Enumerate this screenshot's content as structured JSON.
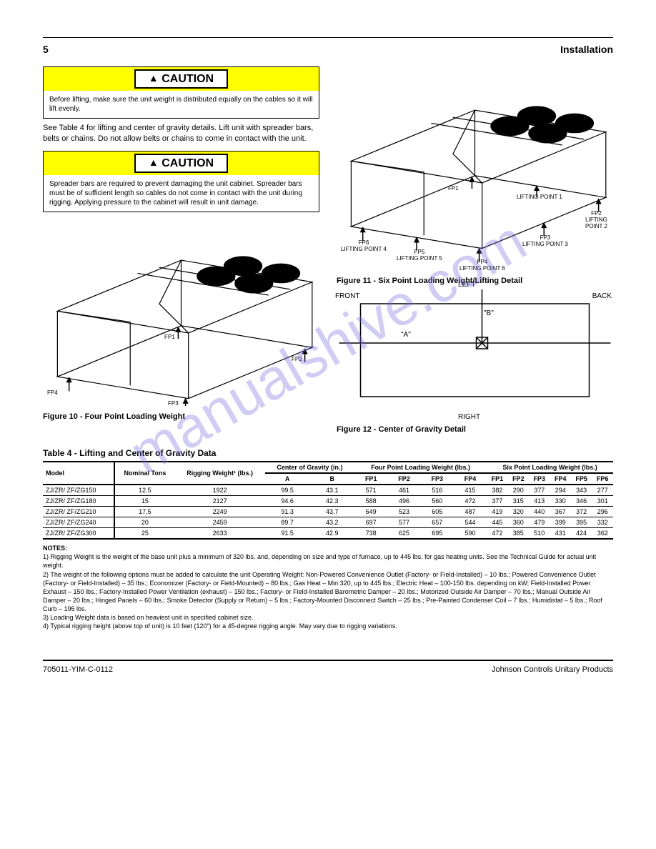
{
  "header": {
    "page": "5",
    "section": "Installation"
  },
  "watermark": "manualshive.com",
  "caution1": {
    "label": "CAUTION",
    "body": "Before lifting, make sure the unit weight is distributed equally on the cables so it will lift evenly."
  },
  "paragraph1": "See Table 4 for lifting and center of gravity details. Lift unit with spreader bars, belts or chains. Do not allow belts or chains to come in contact with the unit.",
  "caution2": {
    "label": "CAUTION",
    "body": "Spreader bars are required to prevent damaging the unit cabinet. Spreader bars must be of sufficient length so cables do not come in contact with the unit during rigging. Applying pressure to the cabinet will result in unit damage."
  },
  "figure10": {
    "caption": "Figure 10 - Four Point Loading Weight",
    "fp1": "FP1",
    "fp2": "FP2",
    "fp3": "FP3",
    "fp4": "FP4"
  },
  "figure11": {
    "caption": "Figure 11 - Six Point Loading Weight/Lifting Detail",
    "fp1": "FP1",
    "fp2": "FP2",
    "fp3": "FP3",
    "fp4": "FP4",
    "fp5": "FP5",
    "fp6": "FP6",
    "lp1": "LIFTING POINT 1",
    "lp2": "LIFTING POINT 2",
    "lp3": "LIFTING POINT 3",
    "lp4": "LIFTING POINT 4",
    "lp5": "LIFTING POINT 5",
    "lp6": "LIFTING POINT 6"
  },
  "figure12": {
    "caption": "Figure 12 - Center of Gravity Detail",
    "front": "FRONT",
    "back": "BACK",
    "left": "LEFT",
    "right": "RIGHT",
    "a": "\"A\"",
    "b": "\"B\""
  },
  "table4": {
    "title": "Table 4 - Lifting and Center of Gravity Data",
    "hdr_model": "Model",
    "hdr_nominal": "Nominal Tons",
    "hdr_rigging": "Rigging Weight¹ (lbs.)",
    "hdr_cg": "Center of Gravity (in.)",
    "hdr_a": "A",
    "hdr_b": "B",
    "hdr_four": "Four Point Loading Weight (lbs.)",
    "hdr_six": "Six Point Loading Weight (lbs.)",
    "hdr_fp1": "FP1",
    "hdr_fp2": "FP2",
    "hdr_fp3": "FP3",
    "hdr_fp4": "FP4",
    "hdr_fp5": "FP5",
    "hdr_fp6": "FP6",
    "rows": [
      {
        "model": "ZJ/ZR/ ZF/ZG150",
        "tons": "12.5",
        "rig": "1922",
        "a": "99.5",
        "b": "43.1",
        "four": [
          "571",
          "461",
          "516",
          "415"
        ],
        "six": [
          "382",
          "290",
          "377",
          "294",
          "343",
          "277"
        ]
      },
      {
        "model": "ZJ/ZR/ ZF/ZG180",
        "tons": "15",
        "rig": "2127",
        "a": "94.6",
        "b": "42.3",
        "four": [
          "588",
          "496",
          "560",
          "472"
        ],
        "six": [
          "377",
          "315",
          "413",
          "330",
          "346",
          "301"
        ]
      },
      {
        "model": "ZJ/ZR/ ZF/ZG210",
        "tons": "17.5",
        "rig": "2249",
        "a": "91.3",
        "b": "43.7",
        "four": [
          "649",
          "523",
          "605",
          "487"
        ],
        "six": [
          "419",
          "320",
          "440",
          "367",
          "372",
          "296"
        ]
      },
      {
        "model": "ZJ/ZR/ ZF/ZG240",
        "tons": "20",
        "rig": "2459",
        "a": "89.7",
        "b": "43.2",
        "four": [
          "697",
          "577",
          "657",
          "544"
        ],
        "six": [
          "445",
          "360",
          "479",
          "399",
          "395",
          "332"
        ]
      },
      {
        "model": "ZJ/ZR/ ZF/ZG300",
        "tons": "25",
        "rig": "2633",
        "a": "91.5",
        "b": "42.9",
        "four": [
          "738",
          "625",
          "695",
          "590"
        ],
        "six": [
          "472",
          "385",
          "510",
          "431",
          "424",
          "362"
        ]
      }
    ],
    "notes_hdr": "NOTES:",
    "note1": "1) Rigging Weight is the weight of the base unit plus a minimum of 320 lbs. and, depending on size and type of furnace, up to 445 lbs. for gas heating units. See the Technical Guide for actual unit weight.",
    "note2": "2) The weight of the following options must be added to calculate the unit Operating Weight: Non-Powered Convenience Outlet (Factory- or Field-Installed) – 10 lbs.; Powered Convenience Outlet (Factory- or Field-Installed) – 35 lbs.; Economizer (Factory- or Field-Mounted) – 80 lbs.; Gas Heat – Min 320, up to 445 lbs.; Electric Heat – 100-150 lbs. depending on kW; Field-Installed Power Exhaust – 150 lbs.; Factory-Installed Power Ventilation (exhaust) – 150 lbs.; Factory- or Field-Installed Barometric Damper – 20 lbs.; Motorized Outside Air Damper – 70 lbs.; Manual Outside Air Damper – 20 lbs.; Hinged Panels – 60 lbs.; Smoke Detector (Supply or Return) – 5 lbs.; Factory-Mounted Disconnect Switch – 25 lbs.; Pre-Painted Condenser Coil – 7 lbs.; Humidistat – 5 lbs.; Roof Curb – 195 lbs.",
    "note3": "3) Loading Weight data is based on heaviest unit in specified cabinet size.",
    "note4": "4) Typical rigging height (above top of unit) is 10 feet (120\") for a 45-degree rigging angle. May vary due to rigging variations."
  },
  "footer": {
    "spec": "705011-YIM-C-0112",
    "issue": "Johnson Controls Unitary Products"
  }
}
